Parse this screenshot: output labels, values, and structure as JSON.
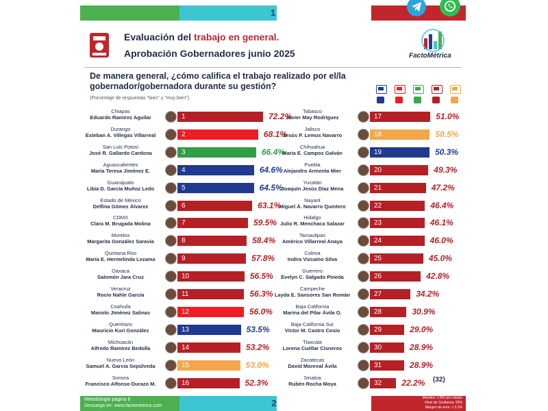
{
  "header": {
    "page_top": "1",
    "title_prefix": "Evaluación del ",
    "title_highlight": "trabajo en general.",
    "title_line2": "Aprobación Gobernadores junio 2025",
    "brand": "FactoMétrica",
    "question": "De manera general, ¿cómo califica el trabajo realizado por el/la gobernador/gobernadora durante su gestión?",
    "subnote": "(Porcentaje de respuestas \"bien\" y \"muy bien\")."
  },
  "footer": {
    "page_bottom": "2",
    "method_line1": "Metodología página 8",
    "method_line2": "Descarga en: www.factometrica.com",
    "right_line1": "Muestra: 1,000 por estado",
    "right_line2": "Nivel de Confianza: 95%",
    "right_line3": "Margen de error: ± 3.1%"
  },
  "colors": {
    "morena": "#b52025",
    "pri": "#ef1c24",
    "pan": "#1f3a8f",
    "pvem": "#3aa844",
    "mc": "#f4a64a",
    "bar_green": "#2f9e44",
    "text_dark": "#1f2a44"
  },
  "party_legend": [
    {
      "name": "pan-pri-prd",
      "color": "#1f3a8f"
    },
    {
      "name": "pri-pan-prd",
      "color": "#ef1c24"
    },
    {
      "name": "pvem",
      "color": "#3aa844"
    },
    {
      "name": "morena",
      "color": "#b52025"
    },
    {
      "name": "mc",
      "color": "#f4a64a"
    }
  ],
  "chart_data": {
    "type": "bar",
    "value_suffix": "%",
    "total_label": "(32)",
    "xlim": [
      0,
      80
    ],
    "rows": [
      {
        "rank": 1,
        "state": "Chiapas",
        "governor": "Eduardo Ramírez Aguilar",
        "value": 72.2,
        "label": "72.2%",
        "party": "morena"
      },
      {
        "rank": 2,
        "state": "Durango",
        "governor": "Esteban A. Villegas Villarreal",
        "value": 68.1,
        "label": "68.1%",
        "party": "pri"
      },
      {
        "rank": 3,
        "state": "San Luis Potosí",
        "governor": "José R. Gallardo Cardona",
        "value": 66.4,
        "label": "66.4%",
        "party": "pvem"
      },
      {
        "rank": 4,
        "state": "Aguascalientes",
        "governor": "María Teresa Jiménez E.",
        "value": 64.6,
        "label": "64.6%",
        "party": "pan"
      },
      {
        "rank": 5,
        "state": "Guanajuato",
        "governor": "Libia D. García Muñoz Ledo",
        "value": 64.5,
        "label": "64.5%",
        "party": "pan"
      },
      {
        "rank": 6,
        "state": "Estado de México",
        "governor": "Delfina Gómez Álvarez",
        "value": 63.1,
        "label": "63.1%",
        "party": "morena"
      },
      {
        "rank": 7,
        "state": "CDMX",
        "governor": "Clara M. Brugada Molina",
        "value": 59.5,
        "label": "59.5%",
        "party": "morena"
      },
      {
        "rank": 8,
        "state": "Morelos",
        "governor": "Margarita González Saravia",
        "value": 58.4,
        "label": "58.4%",
        "party": "morena"
      },
      {
        "rank": 9,
        "state": "Quintana Roo",
        "governor": "María E. Hermelinda Lezama",
        "value": 57.8,
        "label": "57.8%",
        "party": "morena"
      },
      {
        "rank": 10,
        "state": "Oaxaca",
        "governor": "Salomón Jara Cruz",
        "value": 56.5,
        "label": "56.5%",
        "party": "morena"
      },
      {
        "rank": 11,
        "state": "Veracruz",
        "governor": "Rocío Nahle García",
        "value": 56.3,
        "label": "56.3%",
        "party": "morena"
      },
      {
        "rank": 12,
        "state": "Coahuila",
        "governor": "Manolo Jiménez Salinas",
        "value": 56.0,
        "label": "56.0%",
        "party": "pri"
      },
      {
        "rank": 13,
        "state": "Querétaro",
        "governor": "Mauricio Kuri González",
        "value": 53.5,
        "label": "53.5%",
        "party": "pan"
      },
      {
        "rank": 14,
        "state": "Michoacán",
        "governor": "Alfredo Ramírez Bedolla",
        "value": 53.2,
        "label": "53.2%",
        "party": "morena"
      },
      {
        "rank": 15,
        "state": "Nuevo León",
        "governor": "Samuel A. García Sepúlveda",
        "value": 53.0,
        "label": "53.0%",
        "party": "mc"
      },
      {
        "rank": 16,
        "state": "Sonora",
        "governor": "Francisco Alfonso Durazo M.",
        "value": 52.3,
        "label": "52.3%",
        "party": "morena"
      },
      {
        "rank": 17,
        "state": "Tabasco",
        "governor": "Javier May Rodríguez",
        "value": 51.0,
        "label": "51.0%",
        "party": "morena"
      },
      {
        "rank": 18,
        "state": "Jalisco",
        "governor": "Jesús P. Lemus Navarro",
        "value": 50.5,
        "label": "50.5%",
        "party": "mc"
      },
      {
        "rank": 19,
        "state": "Chihuahua",
        "governor": "María E. Campos Galván",
        "value": 50.3,
        "label": "50.3%",
        "party": "pan"
      },
      {
        "rank": 20,
        "state": "Puebla",
        "governor": "Alejandro Armenta Mier",
        "value": 49.3,
        "label": "49.3%",
        "party": "morena"
      },
      {
        "rank": 21,
        "state": "Yucatán",
        "governor": "Joaquín Jesús Díaz Mena",
        "value": 47.2,
        "label": "47.2%",
        "party": "morena"
      },
      {
        "rank": 22,
        "state": "Nayarit",
        "governor": "Miguel Á. Navarro Quintero",
        "value": 46.4,
        "label": "46.4%",
        "party": "morena"
      },
      {
        "rank": 23,
        "state": "Hidalgo",
        "governor": "Julio R. Menchaca Salazar",
        "value": 46.1,
        "label": "46.1%",
        "party": "morena"
      },
      {
        "rank": 24,
        "state": "Tamaulipas",
        "governor": "Américo Villarreal Anaya",
        "value": 46.0,
        "label": "46.0%",
        "party": "morena"
      },
      {
        "rank": 25,
        "state": "Colima",
        "governor": "Indira Vizcaíno Silva",
        "value": 45.0,
        "label": "45.0%",
        "party": "morena"
      },
      {
        "rank": 26,
        "state": "Guerrero",
        "governor": "Evelyn C. Salgado Pineda",
        "value": 42.8,
        "label": "42.8%",
        "party": "morena"
      },
      {
        "rank": 27,
        "state": "Campeche",
        "governor": "Layda E. Sansores San Román",
        "value": 34.2,
        "label": "34.2%",
        "party": "morena"
      },
      {
        "rank": 28,
        "state": "Baja California",
        "governor": "Marina del Pilar Ávila O.",
        "value": 30.9,
        "label": "30.9%",
        "party": "morena"
      },
      {
        "rank": 29,
        "state": "Baja California Sur",
        "governor": "Víctor M. Castro Cosío",
        "value": 29.0,
        "label": "29.0%",
        "party": "morena"
      },
      {
        "rank": 30,
        "state": "Tlaxcala",
        "governor": "Lorena Cuéllar Cisneros",
        "value": 28.9,
        "label": "28.9%",
        "party": "morena"
      },
      {
        "rank": 31,
        "state": "Zacatecas",
        "governor": "David Monreal Ávila",
        "value": 28.9,
        "label": "28.9%",
        "party": "morena"
      },
      {
        "rank": 32,
        "state": "Sinaloa",
        "governor": "Rubén Rocha Moya",
        "value": 22.2,
        "label": "22.2%",
        "party": "morena"
      }
    ]
  }
}
